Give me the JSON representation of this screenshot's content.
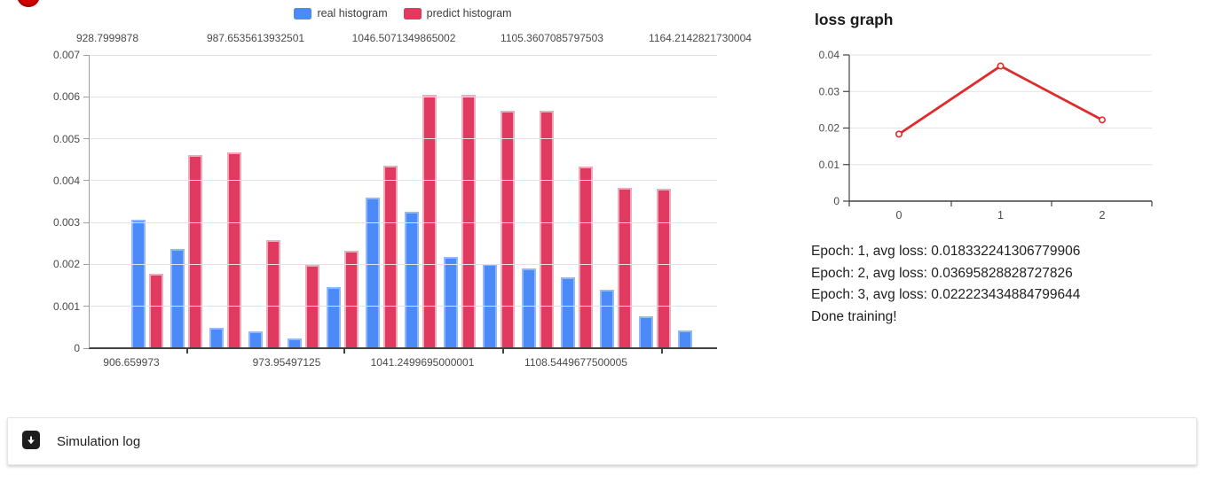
{
  "loss_panel": {
    "title": "loss graph",
    "status_lines": [
      "Epoch: 1, avg loss: 0.018332241306779906",
      "Epoch: 2, avg loss: 0.03695828828727826",
      "Epoch: 3, avg loss: 0.022223434884799644",
      "Done training!"
    ]
  },
  "simulation_log": {
    "label": "Simulation log",
    "icon": "arrow-down-icon"
  },
  "spinner": {
    "icon": "loading-spinner",
    "color": "#d10000"
  },
  "chart_data": [
    {
      "type": "bar",
      "title": "",
      "legend_position": "top",
      "grid": true,
      "ylim": [
        0,
        0.007
      ],
      "y_tick_labels": [
        "0.007",
        "0.006",
        "0.005",
        "0.004",
        "0.003",
        "0.002",
        "0.001",
        "0"
      ],
      "top_axis_labels": [
        "928.7999878",
        "987.6535613932501",
        "1046.5071349865002",
        "1105.3607085797503",
        "1164.2142821730004"
      ],
      "bottom_axis_labels": [
        "906.659973",
        "973.95497125",
        "1041.2499695000001",
        "1108.5449677500005"
      ],
      "series": [
        {
          "name": "real histogram",
          "color": "#4c8af8",
          "border_color": "#93b8fa",
          "values": [
            0.00306,
            0.00237,
            0.00048,
            0.00041,
            0.00024,
            0.00147,
            0.00359,
            0.00326,
            0.00218,
            0.002,
            0.0019,
            0.00169,
            0.00139,
            0.00077,
            0.00042
          ]
        },
        {
          "name": "predict histogram",
          "color": "#e03a60",
          "border_color": "#f0a9bb",
          "values": [
            0.00178,
            0.00461,
            0.00467,
            0.00258,
            0.00198,
            0.00233,
            0.00435,
            0.00604,
            0.00605,
            0.00567,
            0.00566,
            0.00433,
            0.00382,
            0.00381,
            null
          ]
        }
      ]
    },
    {
      "type": "line",
      "title": "loss graph",
      "x": [
        0,
        1,
        2
      ],
      "values": [
        0.018332241306779906,
        0.03695828828727826,
        0.022223434884799644
      ],
      "x_tick_labels": [
        "0",
        "1",
        "2"
      ],
      "y_tick_labels": [
        "0.04",
        "0.03",
        "0.02",
        "0.01",
        "0"
      ],
      "ylim": [
        0,
        0.04
      ],
      "color": "#e02b2b",
      "marker": "open-circle",
      "grid": true,
      "legend_position": "none"
    }
  ]
}
